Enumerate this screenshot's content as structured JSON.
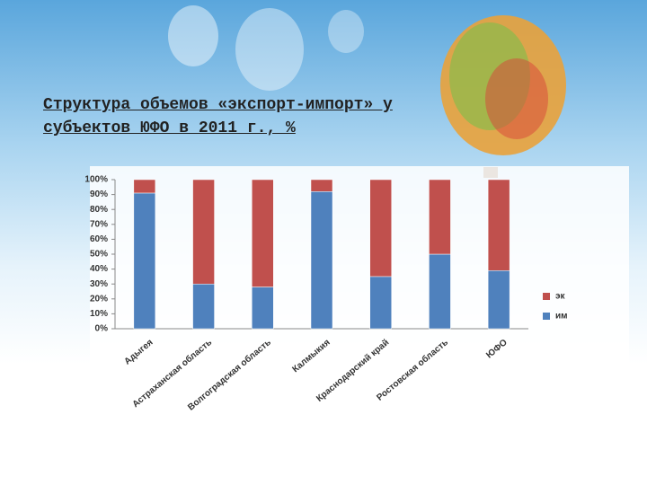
{
  "chart_data": {
    "type": "stacked-bar",
    "title": "Структура объемов «экспорт-импорт» у субъектов ЮФО в 2011 г., %",
    "categories": [
      "Адыгея",
      "Астраханская область",
      "Волгоградская область",
      "Калмыкия",
      "Краснодарский край",
      "Ростовская область",
      "ЮФО"
    ],
    "series": [
      {
        "name": "им",
        "color": "#4f81bd",
        "values": [
          91,
          30,
          28,
          92,
          35,
          50,
          39
        ]
      },
      {
        "name": "эк",
        "color": "#c0504d",
        "values": [
          9,
          70,
          72,
          8,
          65,
          50,
          61
        ]
      }
    ],
    "ylim": [
      0,
      100
    ],
    "yticks": [
      {
        "value": 0,
        "label": "0%"
      },
      {
        "value": 10,
        "label": "10%"
      },
      {
        "value": 20,
        "label": "20%"
      },
      {
        "value": 30,
        "label": "30%"
      },
      {
        "value": 40,
        "label": "40%"
      },
      {
        "value": 50,
        "label": "50%"
      },
      {
        "value": 60,
        "label": "60%"
      },
      {
        "value": 70,
        "label": "70%"
      },
      {
        "value": 80,
        "label": "80%"
      },
      {
        "value": 90,
        "label": "90%"
      },
      {
        "value": 100,
        "label": "100%"
      }
    ],
    "grid": false
  }
}
